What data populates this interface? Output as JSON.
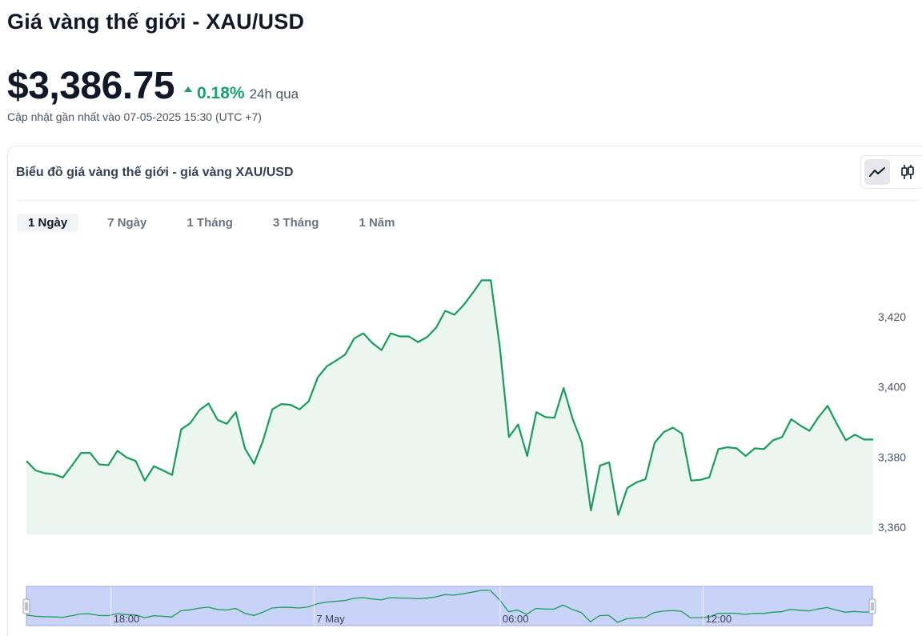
{
  "header": {
    "title": "Giá vàng thế giới - XAU/USD",
    "price": "$3,386.75",
    "change_pct": "0.18%",
    "change_period": "24h qua",
    "change_direction": "up",
    "updated": "Cập nhật gần nhất vào 07-05-2025 15:30 (UTC +7)"
  },
  "card": {
    "title": "Biểu đồ giá vàng thế giới - giá vàng XAU/USD",
    "view_toggle": [
      {
        "icon": "line-chart-icon",
        "active": true
      },
      {
        "icon": "candlestick-chart-icon",
        "active": false
      }
    ],
    "tabs": [
      {
        "label": "1 Ngày",
        "active": true
      },
      {
        "label": "7 Ngày",
        "active": false
      },
      {
        "label": "1 Tháng",
        "active": false
      },
      {
        "label": "3 Tháng",
        "active": false
      },
      {
        "label": "1 Năm",
        "active": false
      }
    ]
  },
  "colors": {
    "line": "#1a9c5c",
    "area": "#eaf6ef",
    "up": "#1aa06b",
    "navigator_fill": "#c9d2f7",
    "navigator_line": "#1a9c5c"
  },
  "chart_data": {
    "type": "area",
    "title": "",
    "xlabel": "",
    "ylabel": "",
    "ylim": [
      3355,
      3432
    ],
    "y_ticks": [
      "3,420",
      "3,400",
      "3,380",
      "3,360"
    ],
    "y_tick_values": [
      3420,
      3400,
      3380,
      3360
    ],
    "grid": false,
    "legend": "none",
    "navigator_ticks": [
      "18:00",
      "7 May",
      "06:00",
      "12:00"
    ],
    "navigator_tick_positions": [
      0.1,
      0.34,
      0.56,
      0.8
    ],
    "series": [
      {
        "values": [
          3378.9,
          3376.2,
          3375.4,
          3375.1,
          3374.2,
          3377.6,
          3381.2,
          3381.2,
          3377.9,
          3377.7,
          3381.8,
          3379.9,
          3378.9,
          3373.3,
          3377.4,
          3376.2,
          3374.9,
          3387.9,
          3389.7,
          3393.4,
          3395.3,
          3390.6,
          3389.5,
          3392.8,
          3382.5,
          3378.1,
          3384.8,
          3393.6,
          3395.1,
          3394.9,
          3393.6,
          3395.9,
          3402.7,
          3405.9,
          3407.5,
          3409.2,
          3413.8,
          3415.3,
          3412.5,
          3410.5,
          3415.3,
          3414.4,
          3414.4,
          3412.8,
          3414.2,
          3416.9,
          3421.7,
          3420.6,
          3423.3,
          3426.7,
          3430.4,
          3430.4,
          3411.2,
          3385.7,
          3389.3,
          3380.3,
          3392.8,
          3391.4,
          3391.2,
          3399.7,
          3390.8,
          3384.1,
          3364.8,
          3377.6,
          3378.5,
          3363.5,
          3371.2,
          3372.8,
          3373.7,
          3384.1,
          3387.1,
          3388.4,
          3386.7,
          3373.3,
          3373.5,
          3374.2,
          3382.3,
          3382.8,
          3382.5,
          3380.3,
          3382.5,
          3382.3,
          3384.8,
          3385.7,
          3390.8,
          3389.0,
          3387.5,
          3391.4,
          3394.6,
          3389.5,
          3384.8,
          3386.4,
          3385.0,
          3385.0
        ]
      }
    ]
  }
}
